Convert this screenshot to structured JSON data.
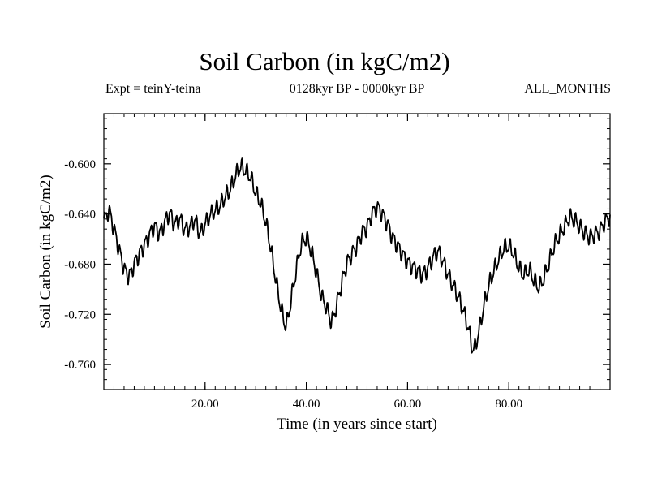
{
  "chart_data": {
    "type": "line",
    "title": "Soil Carbon (in kgC/m2)",
    "subtitle_left": "Expt = teinY-teina",
    "subtitle_center": "0128kyr BP - 0000kyr BP",
    "subtitle_right": "ALL_MONTHS",
    "xlabel": "Time (in years since start)",
    "ylabel": "Soil Carbon (in kgC/m2)",
    "xlim": [
      0,
      100
    ],
    "ylim": [
      -0.78,
      -0.56
    ],
    "xticks": [
      20,
      40,
      60,
      80
    ],
    "xtick_labels": [
      "20.00",
      "40.00",
      "60.00",
      "80.00"
    ],
    "yticks": [
      -0.6,
      -0.64,
      -0.68,
      -0.72,
      -0.76
    ],
    "ytick_labels": [
      "-0.600",
      "-0.640",
      "-0.680",
      "-0.720",
      "-0.760"
    ],
    "x_minor_step": 2,
    "y_minor_step": 0.008,
    "grid": false,
    "series": [
      {
        "name": "Soil Carbon",
        "color": "#000000",
        "x": [
          0,
          1,
          2,
          3,
          4,
          5,
          6,
          7,
          8,
          9,
          10,
          11,
          12,
          13,
          14,
          15,
          16,
          17,
          18,
          19,
          20,
          21,
          22,
          23,
          24,
          25,
          26,
          27,
          28,
          29,
          30,
          31,
          32,
          33,
          34,
          35,
          36,
          37,
          38,
          39,
          40,
          41,
          42,
          43,
          44,
          45,
          46,
          47,
          48,
          49,
          50,
          51,
          52,
          53,
          54,
          55,
          56,
          57,
          58,
          59,
          60,
          61,
          62,
          63,
          64,
          65,
          66,
          67,
          68,
          69,
          70,
          71,
          72,
          73,
          74,
          75,
          76,
          77,
          78,
          79,
          80,
          81,
          82,
          83,
          84,
          85,
          86,
          87,
          88,
          89,
          90,
          91,
          92,
          93,
          94,
          95,
          96,
          97,
          98,
          99,
          100
        ],
        "values": [
          -0.645,
          -0.638,
          -0.652,
          -0.668,
          -0.683,
          -0.689,
          -0.68,
          -0.672,
          -0.665,
          -0.657,
          -0.65,
          -0.655,
          -0.647,
          -0.64,
          -0.648,
          -0.644,
          -0.652,
          -0.65,
          -0.645,
          -0.655,
          -0.648,
          -0.641,
          -0.637,
          -0.633,
          -0.626,
          -0.62,
          -0.61,
          -0.603,
          -0.606,
          -0.611,
          -0.623,
          -0.632,
          -0.647,
          -0.668,
          -0.693,
          -0.715,
          -0.728,
          -0.708,
          -0.685,
          -0.665,
          -0.66,
          -0.67,
          -0.687,
          -0.705,
          -0.715,
          -0.725,
          -0.712,
          -0.695,
          -0.68,
          -0.672,
          -0.665,
          -0.655,
          -0.65,
          -0.64,
          -0.635,
          -0.64,
          -0.648,
          -0.658,
          -0.665,
          -0.672,
          -0.678,
          -0.682,
          -0.685,
          -0.688,
          -0.683,
          -0.675,
          -0.67,
          -0.678,
          -0.688,
          -0.697,
          -0.706,
          -0.717,
          -0.731,
          -0.748,
          -0.735,
          -0.715,
          -0.698,
          -0.686,
          -0.676,
          -0.668,
          -0.666,
          -0.672,
          -0.683,
          -0.688,
          -0.685,
          -0.693,
          -0.698,
          -0.69,
          -0.678,
          -0.665,
          -0.657,
          -0.65,
          -0.643,
          -0.645,
          -0.65,
          -0.655,
          -0.658,
          -0.656,
          -0.653,
          -0.646,
          -0.642
        ]
      }
    ]
  }
}
